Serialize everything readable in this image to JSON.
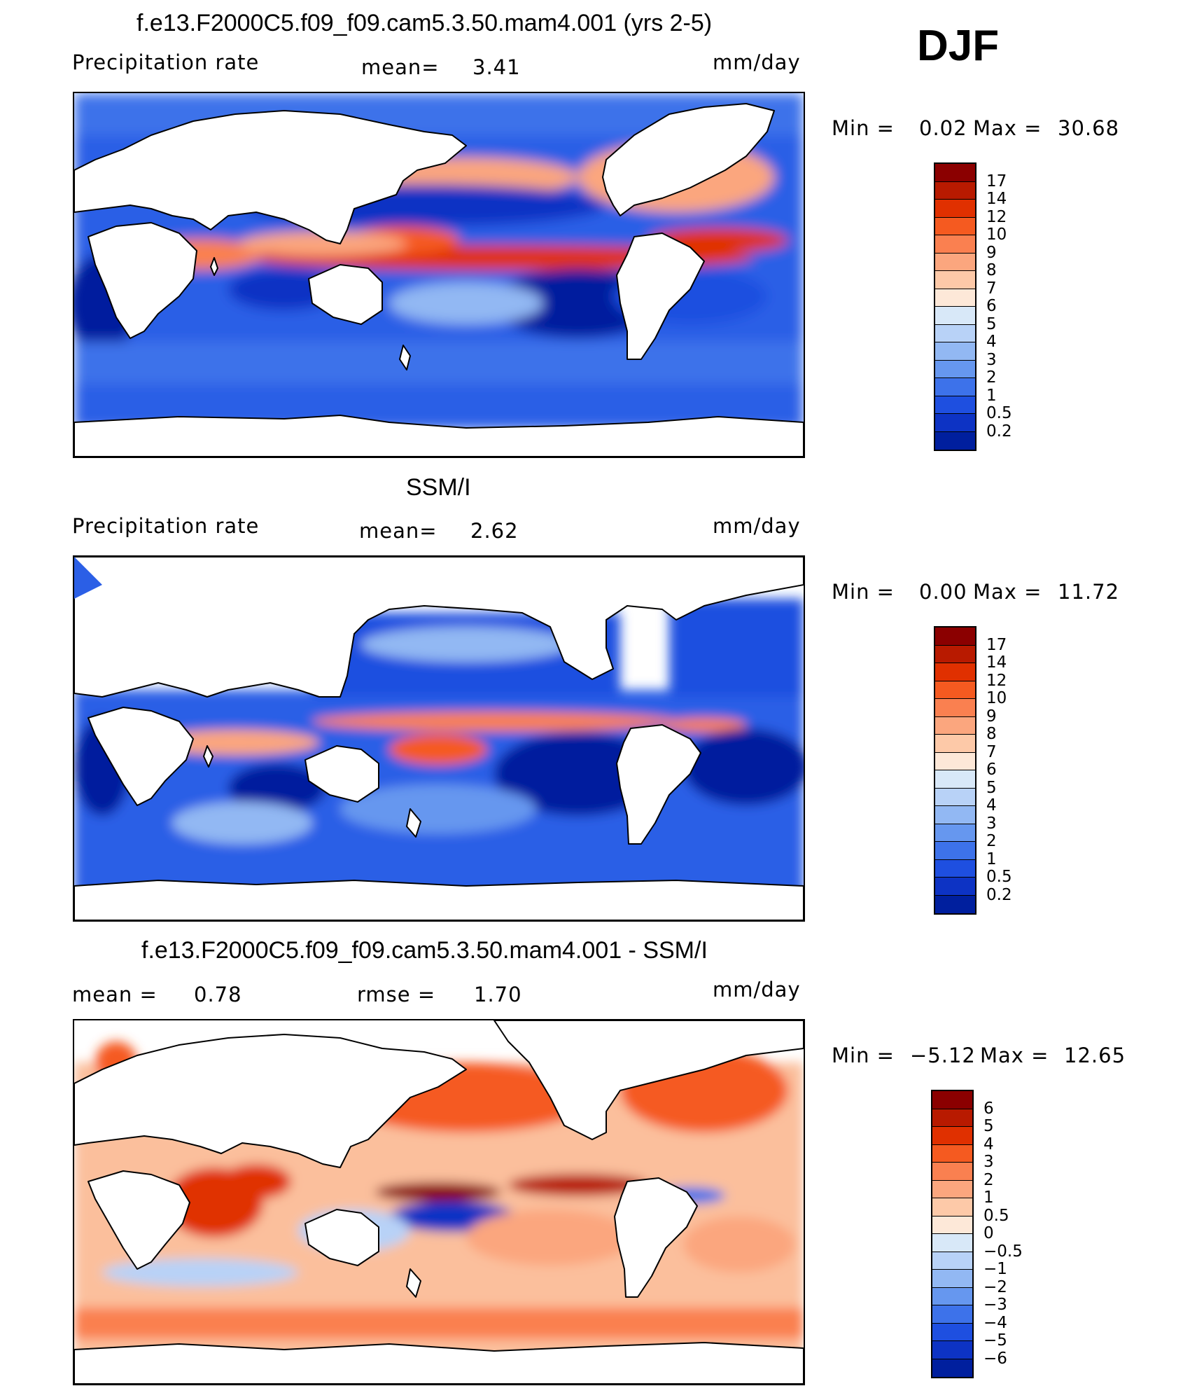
{
  "season_label": "DJF",
  "panels": [
    {
      "title": "f.e13.F2000C5.f09_f09.cam5.3.50.mam4.001 (yrs 2-5)",
      "left_label": "Precipitation  rate",
      "center_label": "mean=",
      "center_value": "3.41",
      "right_label": "mm/day",
      "min_label": "Min  =",
      "min_value": "0.02",
      "max_label": "Max  =",
      "max_value": "30.68",
      "colorbar_labels": [
        "17",
        "14",
        "12",
        "10",
        "9",
        "8",
        "7",
        "6",
        "5",
        "4",
        "3",
        "2",
        "1",
        "0.5",
        "0.2"
      ],
      "colorbar_colors": [
        "#8b0000",
        "#b81a00",
        "#e03000",
        "#f55a20",
        "#fa8050",
        "#fba67e",
        "#fdc9a8",
        "#fde8d8",
        "#d8e8f8",
        "#b8d2f7",
        "#92b8f3",
        "#6697ef",
        "#3d72ea",
        "#1e4fe0",
        "#0d33c4",
        "#001f9e"
      ]
    },
    {
      "title": "SSM/I",
      "left_label": "Precipitation  rate",
      "center_label": "mean=",
      "center_value": "2.62",
      "right_label": "mm/day",
      "min_label": "Min  =",
      "min_value": "0.00",
      "max_label": "Max  =",
      "max_value": "11.72",
      "colorbar_labels": [
        "17",
        "14",
        "12",
        "10",
        "9",
        "8",
        "7",
        "6",
        "5",
        "4",
        "3",
        "2",
        "1",
        "0.5",
        "0.2"
      ],
      "colorbar_colors": [
        "#8b0000",
        "#b81a00",
        "#e03000",
        "#f55a20",
        "#fa8050",
        "#fba67e",
        "#fdc9a8",
        "#fde8d8",
        "#d8e8f8",
        "#b8d2f7",
        "#92b8f3",
        "#6697ef",
        "#3d72ea",
        "#1e4fe0",
        "#0d33c4",
        "#001f9e"
      ]
    },
    {
      "title": "f.e13.F2000C5.f09_f09.cam5.3.50.mam4.001 - SSM/I",
      "left_label": "mean  =",
      "left_value": "0.78",
      "center_label": "rmse  =",
      "center_value": "1.70",
      "right_label": "mm/day",
      "min_label": "Min  =",
      "min_value": "−5.12",
      "max_label": "Max  =",
      "max_value": "12.65",
      "colorbar_labels": [
        "6",
        "5",
        "4",
        "3",
        "2",
        "1",
        "0.5",
        "0",
        "−0.5",
        "−1",
        "−2",
        "−3",
        "−4",
        "−5",
        "−6"
      ],
      "colorbar_colors": [
        "#8b0000",
        "#b81a00",
        "#e03000",
        "#f55a20",
        "#fa8050",
        "#fba67e",
        "#fdc9a8",
        "#fde8d8",
        "#d8e8f8",
        "#b8d2f7",
        "#92b8f3",
        "#6697ef",
        "#3d72ea",
        "#1e4fe0",
        "#0d33c4",
        "#001f9e"
      ]
    }
  ]
}
